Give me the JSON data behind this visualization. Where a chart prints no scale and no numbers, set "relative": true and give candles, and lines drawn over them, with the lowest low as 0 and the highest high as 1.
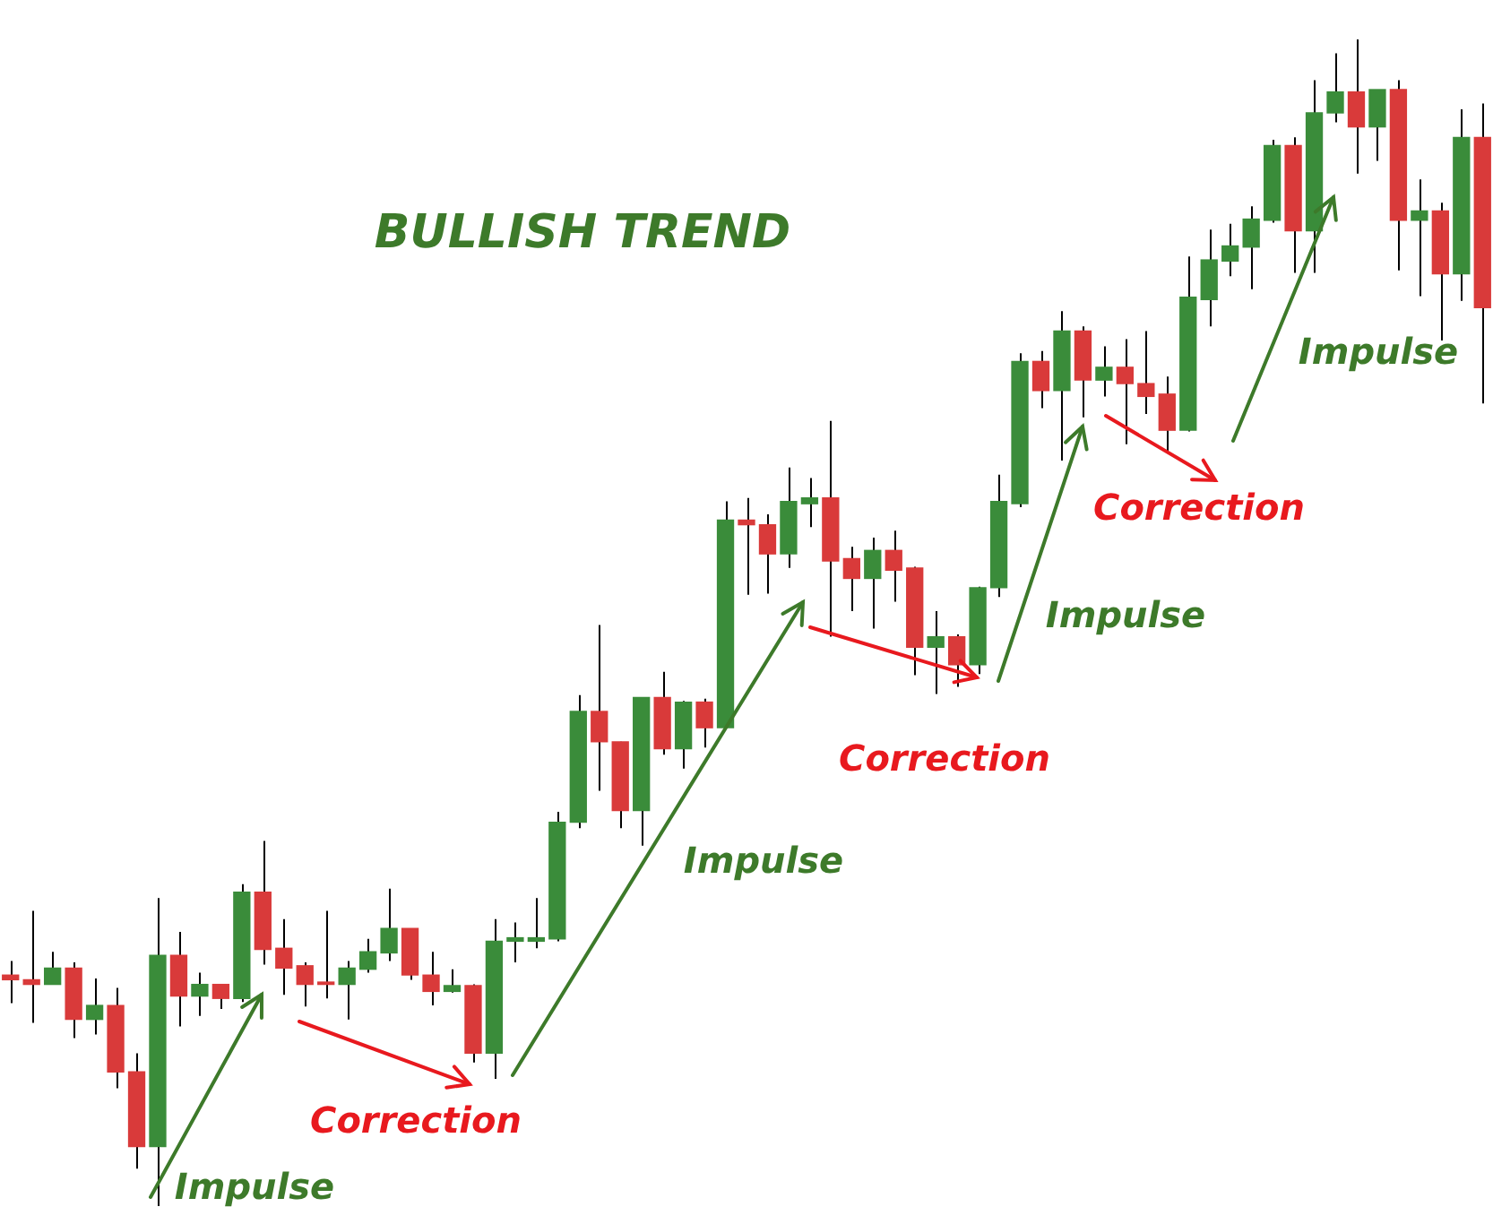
{
  "chart_data": {
    "type": "candlestick",
    "title": "BULLISH TREND",
    "relative": true,
    "legend": false,
    "annotations": [
      "Impulse",
      "Correction",
      "Impulse",
      "Correction",
      "Impulse",
      "Correction",
      "Impulse"
    ],
    "categories": [
      null,
      null,
      null,
      null,
      null,
      null,
      null,
      null,
      null,
      null,
      null,
      null,
      null,
      null,
      null,
      null,
      null,
      null,
      null,
      null,
      null,
      null,
      null,
      null,
      null,
      null,
      null,
      null,
      null,
      null,
      null,
      null,
      null,
      null,
      null,
      null,
      null,
      null,
      null,
      null,
      null,
      null,
      null,
      null,
      null,
      null,
      null,
      null,
      null,
      null,
      null,
      null,
      null,
      null,
      null,
      null,
      null,
      null,
      null,
      null,
      null,
      null,
      null,
      null,
      null,
      null,
      null,
      null,
      null,
      null,
      null
    ],
    "ohlc": [
      [
        0.198,
        0.21,
        0.174,
        0.194
      ],
      [
        0.194,
        0.253,
        0.157,
        0.19
      ],
      [
        0.19,
        0.218,
        0.19,
        0.204
      ],
      [
        0.204,
        0.209,
        0.144,
        0.16
      ],
      [
        0.16,
        0.195,
        0.147,
        0.172
      ],
      [
        0.172,
        0.187,
        0.101,
        0.115
      ],
      [
        0.115,
        0.131,
        0.032,
        0.051
      ],
      [
        0.051,
        0.264,
        0,
        0.215
      ],
      [
        0.215,
        0.235,
        0.154,
        0.18
      ],
      [
        0.18,
        0.2,
        0.163,
        0.19
      ],
      [
        0.19,
        0.19,
        0.169,
        0.178
      ],
      [
        0.178,
        0.276,
        0.175,
        0.269
      ],
      [
        0.269,
        0.313,
        0.207,
        0.22
      ],
      [
        0.221,
        0.246,
        0.181,
        0.204
      ],
      [
        0.206,
        0.209,
        0.171,
        0.19
      ],
      [
        0.192,
        0.253,
        0.178,
        0.19
      ],
      [
        0.19,
        0.21,
        0.16,
        0.204
      ],
      [
        0.203,
        0.229,
        0.2,
        0.218
      ],
      [
        0.217,
        0.272,
        0.21,
        0.238
      ],
      [
        0.238,
        0.238,
        0.194,
        0.198
      ],
      [
        0.198,
        0.218,
        0.172,
        0.184
      ],
      [
        0.184,
        0.203,
        0.183,
        0.189
      ],
      [
        0.189,
        0.19,
        0.123,
        0.131
      ],
      [
        0.131,
        0.246,
        0.109,
        0.227
      ],
      [
        0.227,
        0.243,
        0.209,
        0.23
      ],
      [
        0.227,
        0.264,
        0.221,
        0.23
      ],
      [
        0.229,
        0.338,
        0.227,
        0.329
      ],
      [
        0.329,
        0.438,
        0.324,
        0.424
      ],
      [
        0.424,
        0.498,
        0.356,
        0.398
      ],
      [
        0.398,
        0.398,
        0.324,
        0.339
      ],
      [
        0.339,
        0.436,
        0.309,
        0.436
      ],
      [
        0.436,
        0.458,
        0.387,
        0.392
      ],
      [
        0.392,
        0.433,
        0.375,
        0.432
      ],
      [
        0.432,
        0.435,
        0.393,
        0.41
      ],
      [
        0.41,
        0.604,
        0.41,
        0.588
      ],
      [
        0.588,
        0.607,
        0.524,
        0.584
      ],
      [
        0.584,
        0.593,
        0.525,
        0.559
      ],
      [
        0.559,
        0.633,
        0.547,
        0.604
      ],
      [
        0.602,
        0.624,
        0.582,
        0.607
      ],
      [
        0.607,
        0.673,
        0.488,
        0.553
      ],
      [
        0.555,
        0.565,
        0.51,
        0.538
      ],
      [
        0.538,
        0.573,
        0.495,
        0.562
      ],
      [
        0.562,
        0.579,
        0.518,
        0.545
      ],
      [
        0.547,
        0.548,
        0.455,
        0.479
      ],
      [
        0.479,
        0.51,
        0.439,
        0.488
      ],
      [
        0.488,
        0.49,
        0.445,
        0.464
      ],
      [
        0.464,
        0.531,
        0.456,
        0.53
      ],
      [
        0.53,
        0.627,
        0.522,
        0.604
      ],
      [
        0.602,
        0.731,
        0.599,
        0.724
      ],
      [
        0.724,
        0.733,
        0.684,
        0.699
      ],
      [
        0.699,
        0.767,
        0.639,
        0.75
      ],
      [
        0.75,
        0.754,
        0.676,
        0.708
      ],
      [
        0.708,
        0.737,
        0.694,
        0.719
      ],
      [
        0.719,
        0.743,
        0.653,
        0.705
      ],
      [
        0.705,
        0.75,
        0.679,
        0.694
      ],
      [
        0.696,
        0.711,
        0.647,
        0.665
      ],
      [
        0.665,
        0.814,
        0.664,
        0.779
      ],
      [
        0.777,
        0.837,
        0.754,
        0.811
      ],
      [
        0.81,
        0.842,
        0.797,
        0.823
      ],
      [
        0.822,
        0.857,
        0.786,
        0.846
      ],
      [
        0.845,
        0.914,
        0.843,
        0.909
      ],
      [
        0.909,
        0.916,
        0.8,
        0.836
      ],
      [
        0.836,
        0.965,
        0.8,
        0.937
      ],
      [
        0.937,
        0.988,
        0.929,
        0.955
      ],
      [
        0.955,
        1,
        0.885,
        0.925
      ],
      [
        0.925,
        0.957,
        0.896,
        0.957
      ],
      [
        0.957,
        0.965,
        0.802,
        0.845
      ],
      [
        0.845,
        0.88,
        0.78,
        0.853
      ],
      [
        0.853,
        0.86,
        0.742,
        0.799
      ],
      [
        0.799,
        0.94,
        0.776,
        0.916
      ],
      [
        0.916,
        0.945,
        0.688,
        0.77
      ]
    ],
    "colors": [
      "#d93a3a",
      "#d93a3a",
      "#3a8c3a",
      "#d93a3a",
      "#3a8c3a",
      "#d93a3a",
      "#d93a3a",
      "#3a8c3a",
      "#d93a3a",
      "#3a8c3a",
      "#d93a3a",
      "#3a8c3a",
      "#d93a3a",
      "#d93a3a",
      "#d93a3a",
      "#d93a3a",
      "#3a8c3a",
      "#3a8c3a",
      "#3a8c3a",
      "#d93a3a",
      "#d93a3a",
      "#3a8c3a",
      "#d93a3a",
      "#3a8c3a",
      "#3a8c3a",
      "#3a8c3a",
      "#3a8c3a",
      "#3a8c3a",
      "#d93a3a",
      "#d93a3a",
      "#3a8c3a",
      "#d93a3a",
      "#3a8c3a",
      "#d93a3a",
      "#3a8c3a",
      "#d93a3a",
      "#d93a3a",
      "#3a8c3a",
      "#3a8c3a",
      "#d93a3a",
      "#d93a3a",
      "#3a8c3a",
      "#d93a3a",
      "#d93a3a",
      "#3a8c3a",
      "#d93a3a",
      "#3a8c3a",
      "#3a8c3a",
      "#3a8c3a",
      "#d93a3a",
      "#3a8c3a",
      "#d93a3a",
      "#3a8c3a",
      "#d93a3a",
      "#d93a3a",
      "#d93a3a",
      "#3a8c3a",
      "#3a8c3a",
      "#3a8c3a",
      "#3a8c3a",
      "#3a8c3a",
      "#d93a3a",
      "#3a8c3a",
      "#3a8c3a",
      "#d93a3a",
      "#3a8c3a",
      "#d93a3a",
      "#3a8c3a",
      "#d93a3a",
      "#3a8c3a",
      "#d93a3a"
    ]
  }
}
